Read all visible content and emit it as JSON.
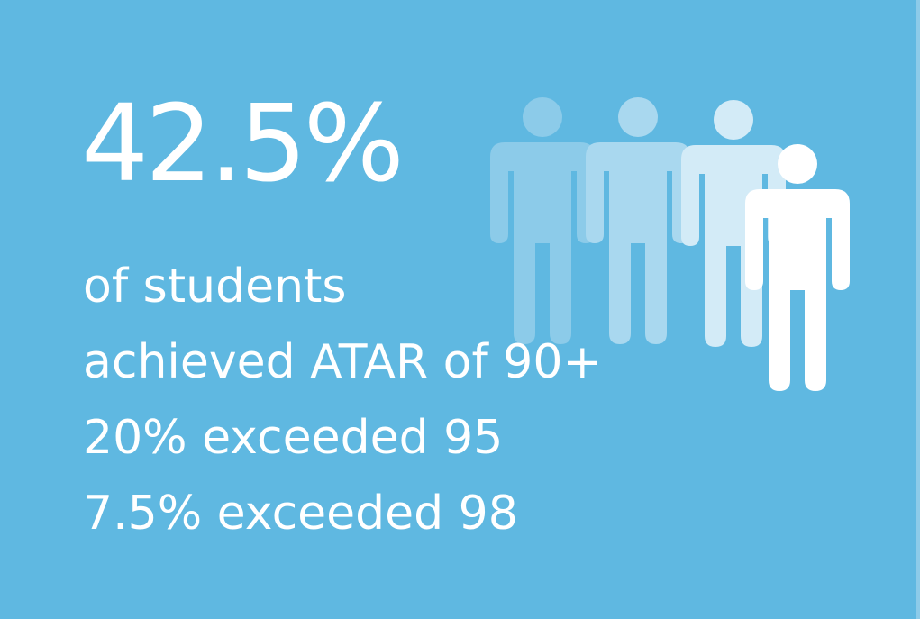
{
  "headline": "42.5%",
  "lines": [
    "of students",
    "achieved ATAR of 90+",
    "20% exceeded 95",
    "7.5% exceeded 98"
  ]
}
